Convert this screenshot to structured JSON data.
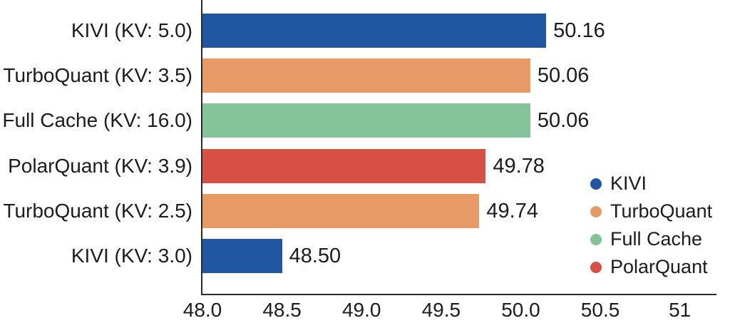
{
  "colors": {
    "text": "#1c1c1c",
    "axis": "#2a2a2a",
    "background": "#ffffff",
    "kivi_blue": "#2056a2",
    "turboquant_orange": "#e89a66",
    "fullcache_green": "#85c398",
    "polarquant_red": "#d85043"
  },
  "chart_data": {
    "type": "bar",
    "orientation": "horizontal",
    "title": "",
    "xlabel": "",
    "ylabel": "",
    "grid": false,
    "categories": [
      "KIVI (KV: 5.0)",
      "TurboQuant (KV: 3.5)",
      "Full Cache (KV: 16.0)",
      "PolarQuant (KV: 3.9)",
      "TurboQuant (KV: 2.5)",
      "KIVI (KV: 3.0)"
    ],
    "values": [
      50.16,
      50.06,
      50.06,
      49.78,
      49.74,
      48.5
    ],
    "value_labels": [
      "50.16",
      "50.06",
      "50.06",
      "49.78",
      "49.74",
      "48.50"
    ],
    "bar_series": [
      "KIVI",
      "TurboQuant",
      "Full Cache",
      "PolarQuant",
      "TurboQuant",
      "KIVI"
    ],
    "x_tick_labels": [
      "48.0",
      "48.5",
      "49.0",
      "49.5",
      "50.0",
      "50.5",
      "51"
    ],
    "x_tick_values": [
      48.0,
      48.5,
      49.0,
      49.5,
      50.0,
      50.5,
      51.0
    ],
    "xlim": [
      48.0,
      51.23
    ],
    "legend_position": "lower right",
    "legend": [
      {
        "label": "KIVI",
        "color": "#2056a2"
      },
      {
        "label": "TurboQuant",
        "color": "#e89a66"
      },
      {
        "label": "Full Cache",
        "color": "#85c398"
      },
      {
        "label": "PolarQuant",
        "color": "#d85043"
      }
    ]
  }
}
